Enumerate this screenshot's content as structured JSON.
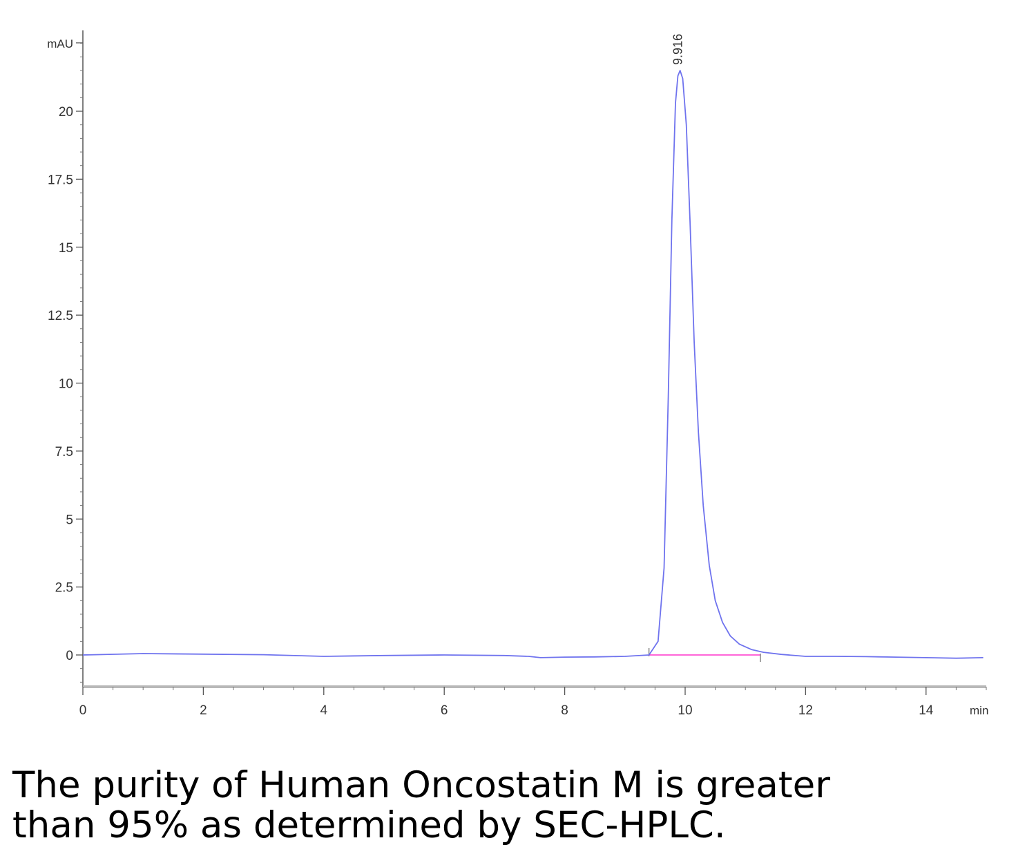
{
  "chart_data": {
    "type": "line",
    "xlabel": "min",
    "ylabel": "mAU",
    "xlim": [
      0,
      15
    ],
    "ylim": [
      -1.2,
      22.5
    ],
    "x_ticks": [
      "0",
      "2",
      "4",
      "6",
      "8",
      "10",
      "12",
      "14"
    ],
    "y_ticks": [
      "0",
      "2.5",
      "5",
      "7.5",
      "10",
      "12.5",
      "15",
      "17.5",
      "20"
    ],
    "grid": false,
    "legend": "none",
    "series": [
      {
        "color": "#6f73ee",
        "x": [
          0,
          1,
          2,
          3,
          4,
          5,
          6,
          7,
          7.4,
          7.6,
          8,
          8.5,
          9,
          9.4,
          9.55,
          9.65,
          9.72,
          9.78,
          9.84,
          9.88,
          9.916,
          9.96,
          10.02,
          10.08,
          10.15,
          10.22,
          10.3,
          10.4,
          10.5,
          10.62,
          10.75,
          10.9,
          11.1,
          11.3,
          11.6,
          12,
          12.5,
          13,
          13.5,
          14,
          14.5,
          14.95
        ],
        "y": [
          0,
          0.05,
          0.03,
          0.01,
          -0.05,
          -0.02,
          0.0,
          -0.02,
          -0.05,
          -0.1,
          -0.08,
          -0.07,
          -0.05,
          0.0,
          0.5,
          3.2,
          9.5,
          16.0,
          20.3,
          21.3,
          21.5,
          21.2,
          19.5,
          16.0,
          11.5,
          8.2,
          5.5,
          3.3,
          2.0,
          1.2,
          0.7,
          0.4,
          0.2,
          0.1,
          0.02,
          -0.05,
          -0.05,
          -0.06,
          -0.08,
          -0.1,
          -0.12,
          -0.1
        ]
      }
    ],
    "baseline": {
      "color": "#ff33cc",
      "x": [
        9.4,
        11.25
      ],
      "y": [
        0.0,
        0.0
      ]
    },
    "annotations": [
      {
        "text": "9.916",
        "x": 9.916,
        "y": 21.5
      }
    ]
  },
  "caption": {
    "line1": "The purity of Human Oncostatin M is greater",
    "line2": "than 95% as determined by SEC-HPLC."
  }
}
